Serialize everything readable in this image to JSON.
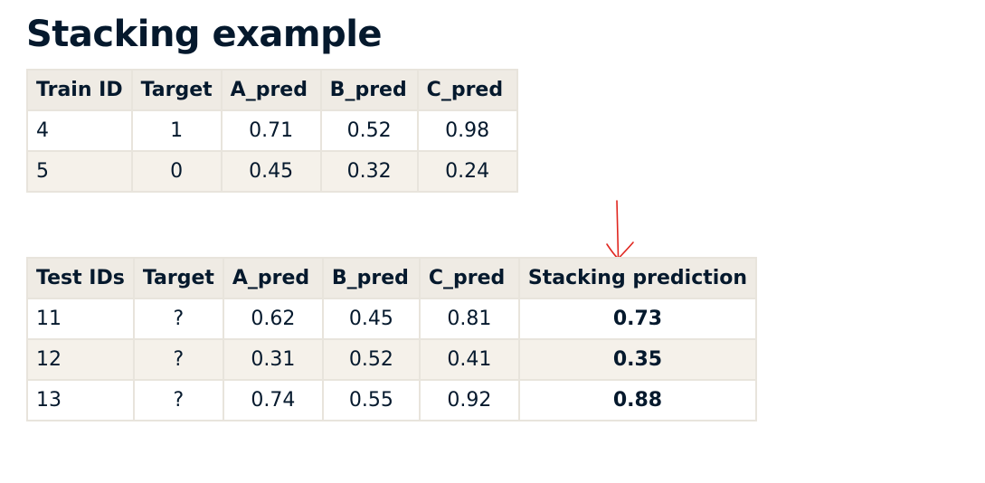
{
  "title": "Stacking example",
  "colors": {
    "text": "#05192d",
    "header_bg": "#efebe4",
    "stripe_bg": "#f5f1ea",
    "arrow": "#e0261f"
  },
  "train_table": {
    "headers": [
      "Train ID",
      "Target",
      "A_pred",
      "B_pred",
      "C_pred"
    ],
    "rows": [
      [
        "4",
        "1",
        "0.71",
        "0.52",
        "0.98"
      ],
      [
        "5",
        "0",
        "0.45",
        "0.32",
        "0.24"
      ]
    ]
  },
  "test_table": {
    "headers": [
      "Test IDs",
      "Target",
      "A_pred",
      "B_pred",
      "C_pred",
      "Stacking prediction"
    ],
    "rows": [
      [
        "11",
        "?",
        "0.62",
        "0.45",
        "0.81",
        "0.73"
      ],
      [
        "12",
        "?",
        "0.31",
        "0.52",
        "0.41",
        "0.35"
      ],
      [
        "13",
        "?",
        "0.74",
        "0.55",
        "0.92",
        "0.88"
      ]
    ]
  },
  "annotation": {
    "icon": "hand-drawn-down-arrow-icon"
  }
}
